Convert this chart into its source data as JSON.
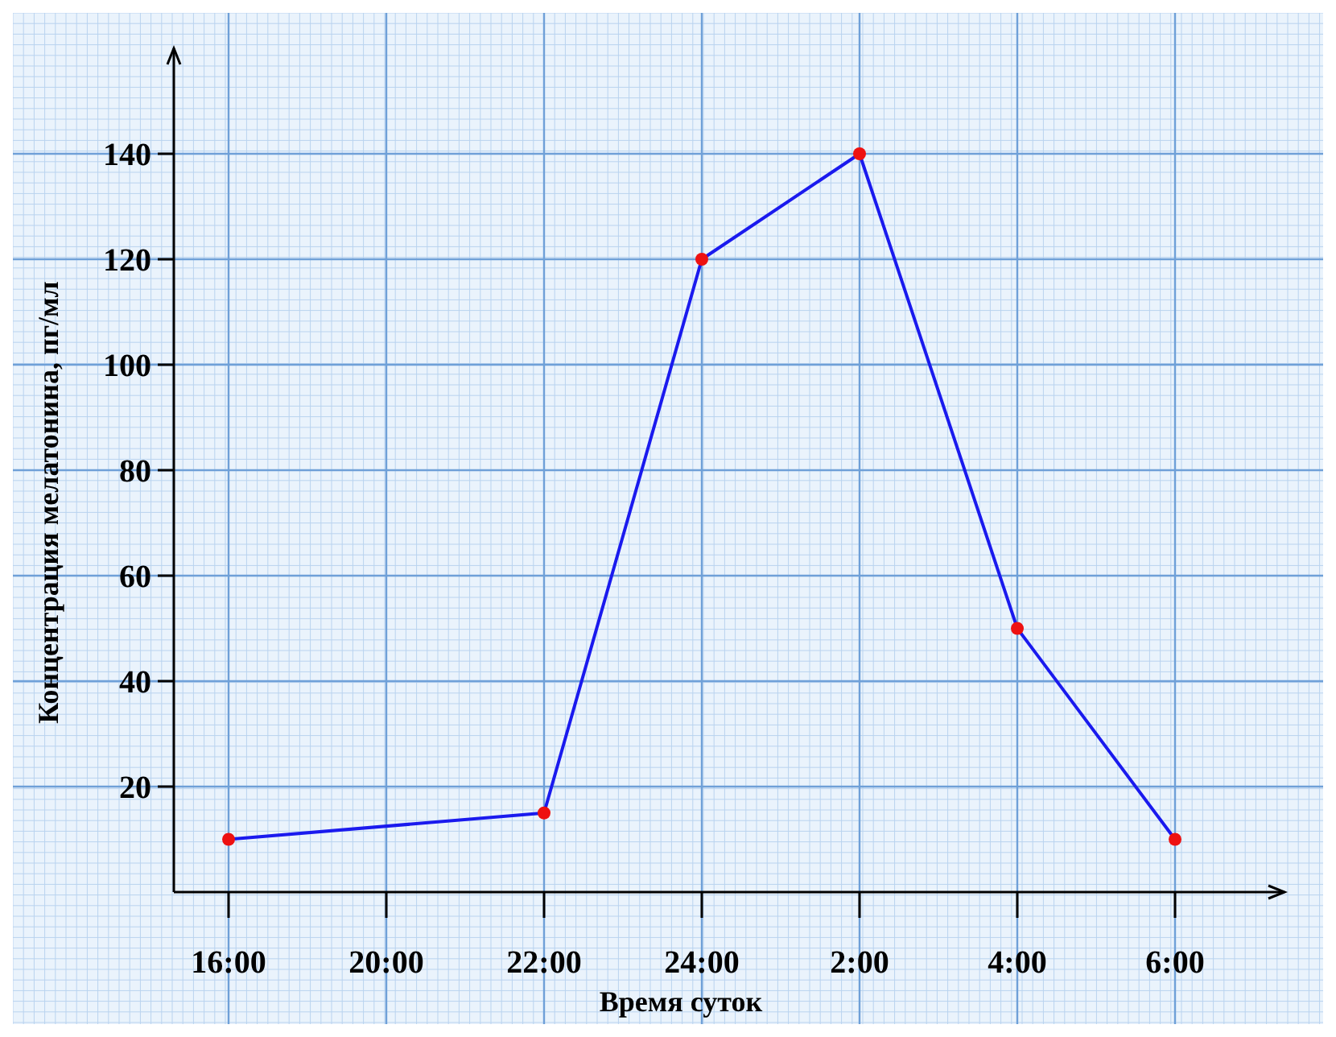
{
  "chart_data": {
    "type": "line",
    "xlabel": "Время суток",
    "ylabel": "Концентрация мелатонина, пг/мл",
    "categories": [
      "16:00",
      "20:00",
      "22:00",
      "24:00",
      "2:00",
      "4:00",
      "6:00"
    ],
    "series": [
      {
        "color": "#1a1aee",
        "colors": [
          "#ee1111",
          null,
          "#ee1111",
          "#ee1111",
          "#ee1111",
          "#ee1111",
          "#ee1111"
        ],
        "values": [
          10,
          null,
          15,
          120,
          140,
          50,
          10
        ]
      }
    ],
    "ylim": [
      0,
      160
    ],
    "yticks": [
      20,
      40,
      60,
      80,
      100,
      120,
      140
    ],
    "grid": true,
    "marker": "circle",
    "line_style": "solid"
  }
}
